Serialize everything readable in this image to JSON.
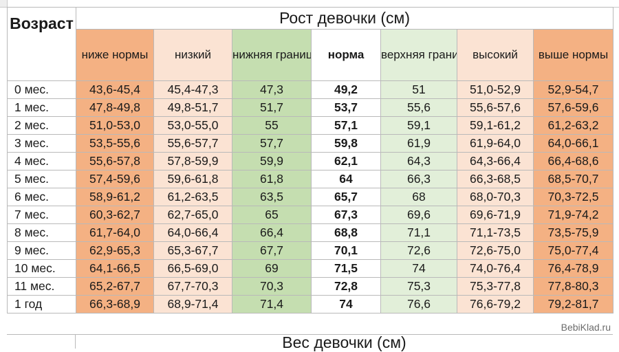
{
  "table": {
    "title": "Рост девочки (см)",
    "age_header": "Возраст",
    "columns": [
      {
        "label": "ниже нормы",
        "cls": "c-low2"
      },
      {
        "label": "низкий",
        "cls": "c-low1"
      },
      {
        "label": "нижняя граница нормы",
        "cls": "c-lowb"
      },
      {
        "label": "норма",
        "cls": "c-norm"
      },
      {
        "label": "верхняя граница нормы",
        "cls": "c-upb"
      },
      {
        "label": "высокий",
        "cls": "c-up1"
      },
      {
        "label": "выше нормы",
        "cls": "c-up2"
      }
    ],
    "rows": [
      {
        "age": "0 мес.",
        "values": [
          "43,6-45,4",
          "45,4-47,3",
          "47,3",
          "49,2",
          "51",
          "51,0-52,9",
          "52,9-54,7"
        ]
      },
      {
        "age": "1 мес.",
        "values": [
          "47,8-49,8",
          "49,8-51,7",
          "51,7",
          "53,7",
          "55,6",
          "55,6-57,6",
          "57,6-59,6"
        ]
      },
      {
        "age": "2 мес.",
        "values": [
          "51,0-53,0",
          "53,0-55,0",
          "55",
          "57,1",
          "59,1",
          "59,1-61,2",
          "61,2-63,2"
        ]
      },
      {
        "age": "3 мес.",
        "values": [
          "53,5-55,6",
          "55,6-57,7",
          "57,7",
          "59,8",
          "61,9",
          "61,9-64,0",
          "64,0-66,1"
        ]
      },
      {
        "age": "4 мес.",
        "values": [
          "55,6-57,8",
          "57,8-59,9",
          "59,9",
          "62,1",
          "64,3",
          "64,3-66,4",
          "66,4-68,6"
        ]
      },
      {
        "age": "5 мес.",
        "values": [
          "57,4-59,6",
          "59,6-61,8",
          "61,8",
          "64",
          "66,3",
          "66,3-68,5",
          "68,5-70,7"
        ]
      },
      {
        "age": "6 мес.",
        "values": [
          "58,9-61,2",
          "61,2-63,5",
          "63,5",
          "65,7",
          "68",
          "68,0-70,3",
          "70,3-72,5"
        ]
      },
      {
        "age": "7 мес.",
        "values": [
          "60,3-62,7",
          "62,7-65,0",
          "65",
          "67,3",
          "69,6",
          "69,6-71,9",
          "71,9-74,2"
        ]
      },
      {
        "age": "8 мес.",
        "values": [
          "61,7-64,0",
          "64,0-66,4",
          "66,4",
          "68,8",
          "71,1",
          "71,1-73,5",
          "73,5-75,9"
        ]
      },
      {
        "age": "9 мес.",
        "values": [
          "62,9-65,3",
          "65,3-67,7",
          "67,7",
          "70,1",
          "72,6",
          "72,6-75,0",
          "75,0-77,4"
        ]
      },
      {
        "age": "10 мес.",
        "values": [
          "64,1-66,5",
          "66,5-69,0",
          "69",
          "71,5",
          "74",
          "74,0-76,4",
          "76,4-78,9"
        ]
      },
      {
        "age": "11 мес.",
        "values": [
          "65,2-67,7",
          "67,7-70,3",
          "70,3",
          "72,8",
          "75,3",
          "75,3-77,8",
          "77,8-80,3"
        ]
      },
      {
        "age": "1 год",
        "values": [
          "66,3-68,9",
          "68,9-71,4",
          "71,4",
          "74",
          "76,6",
          "76,6-79,2",
          "79,2-81,7"
        ]
      }
    ]
  },
  "watermark": "BebiKlad.ru",
  "next_table": {
    "title": "Вес девочки (см)"
  }
}
